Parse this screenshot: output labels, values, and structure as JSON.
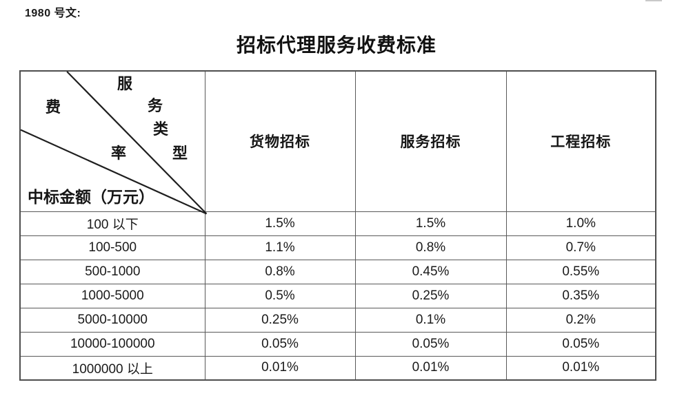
{
  "doc": {
    "ref_label": "1980 号文:",
    "title": "招标代理服务收费标准"
  },
  "table": {
    "corner": {
      "chars": {
        "fu": "服",
        "wu": "务",
        "lei": "类",
        "xing": "型",
        "fei": "费",
        "lv": "率"
      },
      "diagonal_label_top": "服务类型",
      "diagonal_label_middle": "费率",
      "bottom_label": "中标金额（万元）"
    },
    "columns": [
      "货物招标",
      "服务招标",
      "工程招标"
    ],
    "rows": [
      {
        "range": "100 以下",
        "values": [
          "1.5%",
          "1.5%",
          "1.0%"
        ]
      },
      {
        "range": "100-500",
        "values": [
          "1.1%",
          "0.8%",
          "0.7%"
        ]
      },
      {
        "range": "500-1000",
        "values": [
          "0.8%",
          "0.45%",
          "0.55%"
        ]
      },
      {
        "range": "1000-5000",
        "values": [
          "0.5%",
          "0.25%",
          "0.35%"
        ]
      },
      {
        "range": "5000-10000",
        "values": [
          "0.25%",
          "0.1%",
          "0.2%"
        ]
      },
      {
        "range": "10000-100000",
        "values": [
          "0.05%",
          "0.05%",
          "0.05%"
        ]
      },
      {
        "range": "1000000 以上",
        "values": [
          "0.01%",
          "0.01%",
          "0.01%"
        ]
      }
    ]
  },
  "colors": {
    "table_border": "#555555",
    "text": "#1a1a1a",
    "background": "#ffffff"
  }
}
